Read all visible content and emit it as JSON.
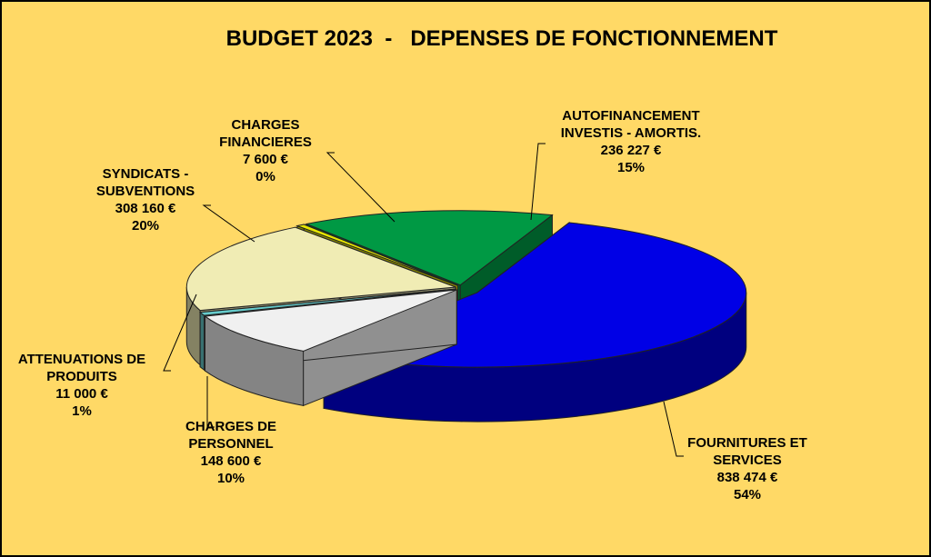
{
  "chart_data": {
    "type": "pie",
    "title": "BUDGET 2023  -   DEPENSES DE FONCTIONNEMENT",
    "three_d": true,
    "slices": [
      {
        "name_lines": [
          "FOURNITURES ET",
          "SERVICES"
        ],
        "value_text": "838 474 €",
        "percent_text": "54%",
        "value": 838474,
        "color": "#0000e6",
        "exploded": true
      },
      {
        "name_lines": [
          "CHARGES DE",
          "PERSONNEL"
        ],
        "value_text": "148 600 €",
        "percent_text": "10%",
        "value": 148600,
        "color": "#f0f0f0",
        "exploded": false
      },
      {
        "name_lines": [
          "ATTENUATIONS DE",
          "PRODUITS"
        ],
        "value_text": "11 000 €",
        "percent_text": "1%",
        "value": 11000,
        "color": "#66cccc",
        "exploded": false
      },
      {
        "name_lines": [
          "SYNDICATS -",
          "SUBVENTIONS"
        ],
        "value_text": "308 160 €",
        "percent_text": "20%",
        "value": 308160,
        "color": "#f0ecb4",
        "exploded": false
      },
      {
        "name_lines": [
          "CHARGES",
          "FINANCIERES"
        ],
        "value_text": "7 600 €",
        "percent_text": "0%",
        "value": 7600,
        "color": "#e6e600",
        "exploded": false
      },
      {
        "name_lines": [
          "AUTOFINANCEMENT",
          "INVESTIS - AMORTIS."
        ],
        "value_text": "236 227 €",
        "percent_text": "15%",
        "value": 236227,
        "color": "#009944",
        "exploded": false
      }
    ],
    "legend": "none",
    "background": "#ffd966"
  }
}
